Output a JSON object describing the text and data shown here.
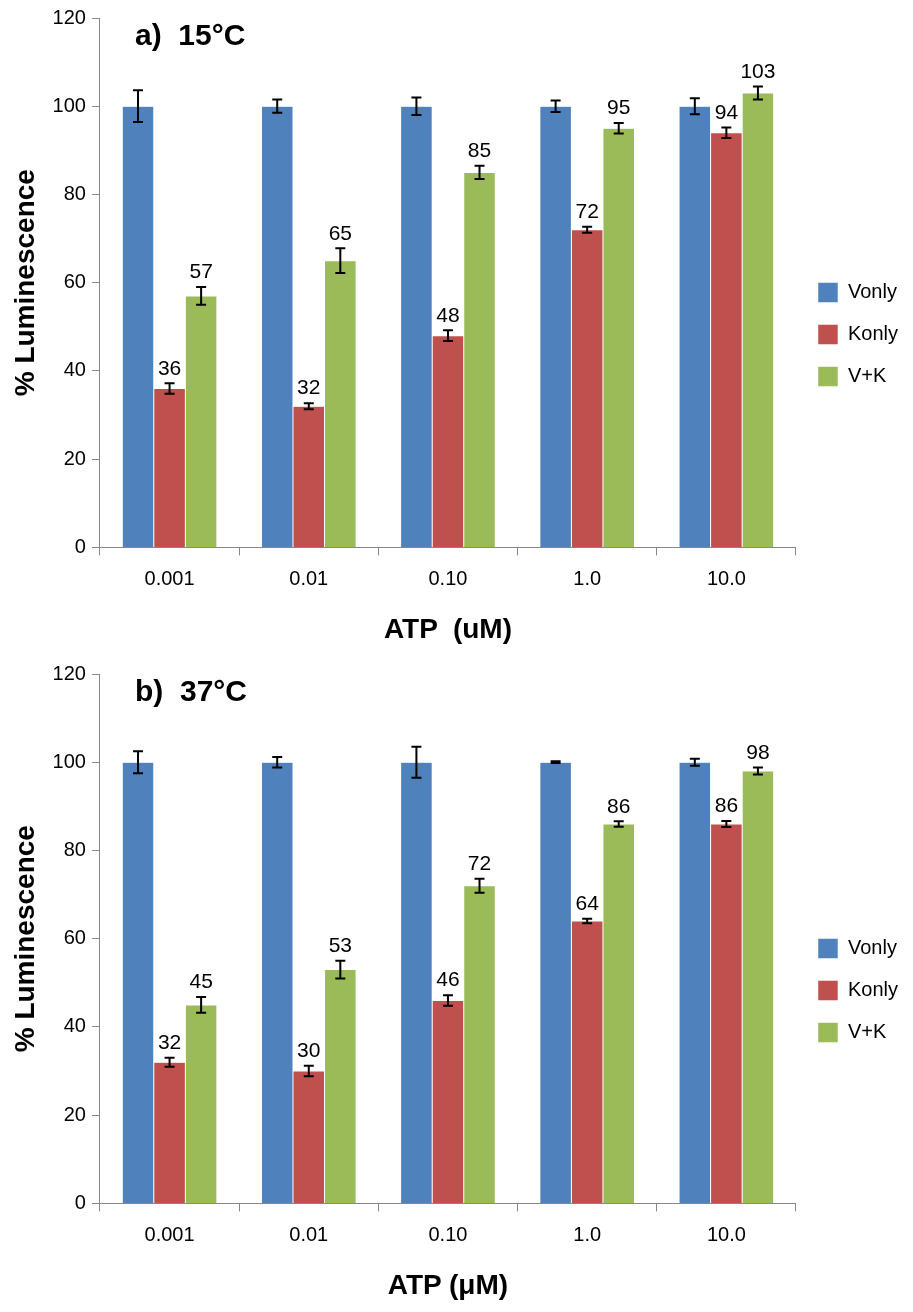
{
  "chart_data": [
    {
      "type": "bar",
      "title": "a)  15°C",
      "xlabel": "ATP  (uM)",
      "ylabel": "% Luminescence",
      "categories": [
        "0.001",
        "0.01",
        "0.10",
        "1.0",
        "10.0"
      ],
      "series": [
        {
          "name": "Vonly",
          "color": "#4f81bd",
          "values": [
            100,
            100,
            100,
            100,
            100
          ],
          "errors": [
            3.6,
            1.5,
            2,
            1.3,
            1.8
          ]
        },
        {
          "name": "Konly",
          "color": "#c0504d",
          "values": [
            36,
            32,
            48,
            72,
            94
          ],
          "errors": [
            1.2,
            0.7,
            1.2,
            0.7,
            1.2
          ],
          "value_labels": [
            "36",
            "32",
            "48",
            "72",
            "94"
          ]
        },
        {
          "name": "V+K",
          "color": "#9bbb59",
          "values": [
            57,
            65,
            85,
            95,
            103
          ],
          "errors": [
            2,
            2.8,
            1.5,
            1.2,
            1.5
          ],
          "value_labels": [
            "57",
            "65",
            "85",
            "95",
            "103"
          ]
        }
      ],
      "ylim": [
        0,
        120
      ],
      "yticks": [
        0,
        20,
        40,
        60,
        80,
        100,
        120
      ],
      "grid": false,
      "legend": "right"
    },
    {
      "type": "bar",
      "title": "b)  37°C",
      "xlabel": "ATP (μM)",
      "ylabel": "% Luminescence",
      "categories": [
        "0.001",
        "0.01",
        "0.10",
        "1.0",
        "10.0"
      ],
      "series": [
        {
          "name": "Vonly",
          "color": "#4f81bd",
          "values": [
            100,
            100,
            100,
            100,
            100
          ],
          "errors": [
            2.5,
            1.2,
            3.5,
            0.2,
            0.8
          ]
        },
        {
          "name": "Konly",
          "color": "#c0504d",
          "values": [
            32,
            30,
            46,
            64,
            86
          ],
          "errors": [
            1,
            1.2,
            1.2,
            0.5,
            0.7
          ],
          "value_labels": [
            "32",
            "30",
            "46",
            "64",
            "86"
          ]
        },
        {
          "name": "V+K",
          "color": "#9bbb59",
          "values": [
            45,
            53,
            72,
            86,
            98
          ],
          "errors": [
            1.8,
            2,
            1.6,
            0.6,
            0.8
          ],
          "value_labels": [
            "45",
            "53",
            "72",
            "86",
            "98"
          ]
        }
      ],
      "ylim": [
        0,
        120
      ],
      "yticks": [
        0,
        20,
        40,
        60,
        80,
        100,
        120
      ],
      "grid": false,
      "legend": "right"
    }
  ]
}
